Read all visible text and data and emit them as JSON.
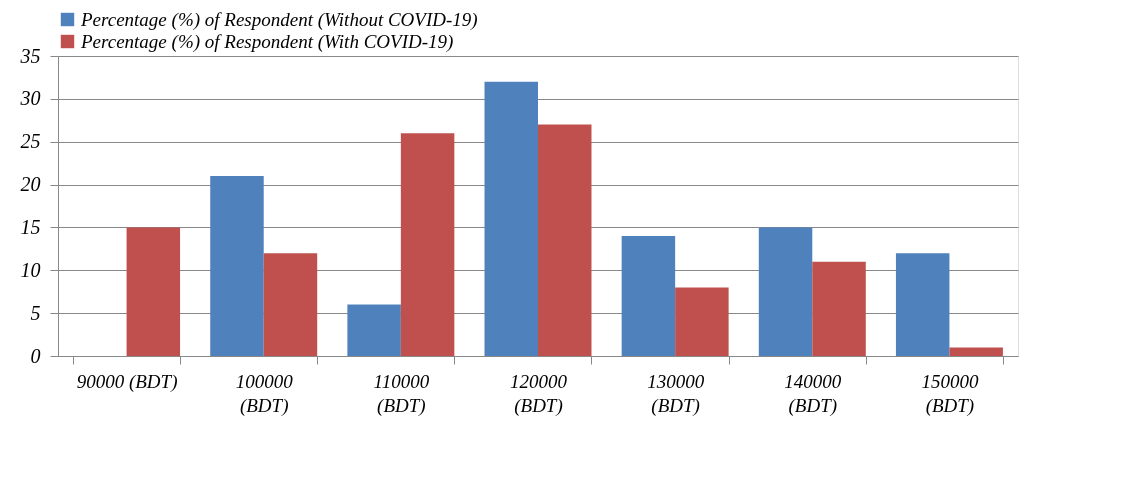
{
  "chart_data": {
    "type": "bar",
    "categories": [
      "90000 (BDT)",
      "100000 (BDT)",
      "110000 (BDT)",
      "120000 (BDT)",
      "130000 (BDT)",
      "140000 (BDT)",
      "150000 (BDT)"
    ],
    "series": [
      {
        "name": "Percentage (%) of Respondent (Without COVID-19)",
        "color": "#4f81bd",
        "values": [
          null,
          21,
          6,
          32,
          14,
          15,
          12
        ]
      },
      {
        "name": "Percentage (%) of Respondent (With COVID-19)",
        "color": "#c0504d",
        "values": [
          15,
          12,
          26,
          27,
          8,
          11,
          1
        ]
      }
    ],
    "ylim": [
      0,
      35
    ],
    "yticks": [
      0,
      5,
      10,
      15,
      20,
      25,
      30,
      35
    ],
    "grid": "y",
    "legend": "top"
  }
}
